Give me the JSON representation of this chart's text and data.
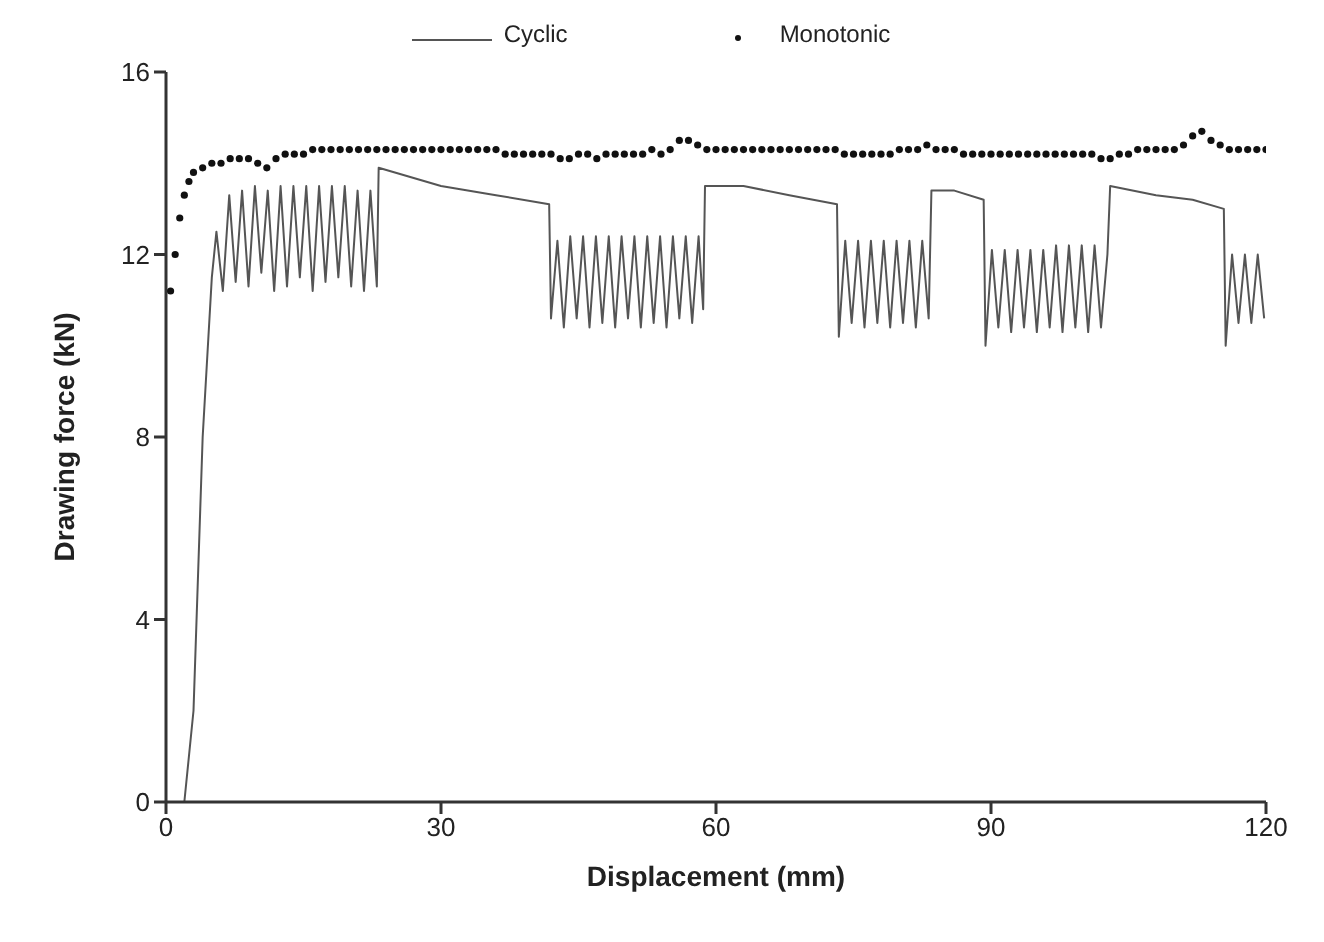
{
  "chart_data": {
    "type": "line",
    "xlabel": "Displacement (mm)",
    "ylabel": "Drawing force (kN)",
    "xlim": [
      0,
      120
    ],
    "xticks": [
      0,
      30,
      60,
      90,
      120
    ],
    "ylim": [
      0,
      16
    ],
    "yticks": [
      0,
      4,
      8,
      12,
      16
    ],
    "grid": false,
    "legend": "top",
    "series": [
      {
        "name": "Cyclic",
        "color": "#555555",
        "marker": "none",
        "line_style": "solid",
        "x": [
          0,
          2,
          3,
          4,
          5,
          5.5,
          6.2,
          6.9,
          7.6,
          8.3,
          9.0,
          9.7,
          10.4,
          11.1,
          11.8,
          12.5,
          13.2,
          13.9,
          14.6,
          15.3,
          16.0,
          16.7,
          17.4,
          18.1,
          18.8,
          19.5,
          20.2,
          20.9,
          21.6,
          22.3,
          23.0,
          23.2,
          30,
          36,
          41.8,
          42,
          42.7,
          43.4,
          44.1,
          44.8,
          45.5,
          46.2,
          46.9,
          47.6,
          48.3,
          49.0,
          49.7,
          50.4,
          51.1,
          51.8,
          52.5,
          53.2,
          53.9,
          54.6,
          55.3,
          56.0,
          56.7,
          57.4,
          58.1,
          58.6,
          58.8,
          63,
          68,
          73.2,
          73.4,
          74.1,
          74.8,
          75.5,
          76.2,
          76.9,
          77.6,
          78.3,
          79.0,
          79.7,
          80.4,
          81.1,
          81.8,
          82.5,
          83.2,
          83.5,
          86,
          89.2,
          89.4,
          90.1,
          90.8,
          91.5,
          92.2,
          92.9,
          93.6,
          94.3,
          95.0,
          95.7,
          96.4,
          97.1,
          97.8,
          98.5,
          99.2,
          99.9,
          100.6,
          101.3,
          102.0,
          102.7,
          103.0,
          108,
          112,
          115.4,
          115.6,
          116.3,
          117.0,
          117.7,
          118.4,
          119.1,
          119.8
        ],
        "values": [
          0,
          0,
          2,
          8,
          11.5,
          12.5,
          11.2,
          13.3,
          11.4,
          13.4,
          11.3,
          13.5,
          11.6,
          13.4,
          11.2,
          13.5,
          11.3,
          13.5,
          11.5,
          13.5,
          11.2,
          13.5,
          11.4,
          13.5,
          11.5,
          13.5,
          11.3,
          13.4,
          11.2,
          13.4,
          11.3,
          13.9,
          13.5,
          13.3,
          13.1,
          10.6,
          12.3,
          10.4,
          12.4,
          10.6,
          12.4,
          10.4,
          12.4,
          10.5,
          12.4,
          10.4,
          12.4,
          10.6,
          12.4,
          10.4,
          12.4,
          10.5,
          12.4,
          10.4,
          12.4,
          10.6,
          12.4,
          10.5,
          12.4,
          10.8,
          13.5,
          13.5,
          13.3,
          13.1,
          10.2,
          12.3,
          10.5,
          12.3,
          10.4,
          12.3,
          10.5,
          12.3,
          10.4,
          12.3,
          10.5,
          12.3,
          10.4,
          12.3,
          10.6,
          13.4,
          13.4,
          13.2,
          10.0,
          12.1,
          10.4,
          12.1,
          10.3,
          12.1,
          10.4,
          12.1,
          10.3,
          12.1,
          10.4,
          12.2,
          10.3,
          12.2,
          10.4,
          12.2,
          10.3,
          12.2,
          10.4,
          12.0,
          13.5,
          13.3,
          13.2,
          13.0,
          10.0,
          12.0,
          10.5,
          12.0,
          10.5,
          12.0,
          10.6
        ]
      },
      {
        "name": "Monotonic",
        "type": "scatter",
        "color": "#111111",
        "marker": "circle",
        "x": [
          0.5,
          1,
          1.5,
          2,
          2.5,
          3,
          4,
          5,
          6,
          7,
          8,
          9,
          10,
          11,
          12,
          13,
          14,
          15,
          16,
          17,
          18,
          19,
          20,
          21,
          22,
          23,
          24,
          25,
          26,
          27,
          28,
          29,
          30,
          31,
          32,
          33,
          34,
          35,
          36,
          37,
          38,
          39,
          40,
          41,
          42,
          43,
          44,
          45,
          46,
          47,
          48,
          49,
          50,
          51,
          52,
          53,
          54,
          55,
          56,
          57,
          58,
          59,
          60,
          61,
          62,
          63,
          64,
          65,
          66,
          67,
          68,
          69,
          70,
          71,
          72,
          73,
          74,
          75,
          76,
          77,
          78,
          79,
          80,
          81,
          82,
          83,
          84,
          85,
          86,
          87,
          88,
          89,
          90,
          91,
          92,
          93,
          94,
          95,
          96,
          97,
          98,
          99,
          100,
          101,
          102,
          103,
          104,
          105,
          106,
          107,
          108,
          109,
          110,
          111,
          112,
          113,
          114,
          115,
          116,
          117,
          118,
          119,
          120
        ],
        "values": [
          11.2,
          12,
          12.8,
          13.3,
          13.6,
          13.8,
          13.9,
          14.0,
          14.0,
          14.1,
          14.1,
          14.1,
          14.0,
          13.9,
          14.1,
          14.2,
          14.2,
          14.2,
          14.3,
          14.3,
          14.3,
          14.3,
          14.3,
          14.3,
          14.3,
          14.3,
          14.3,
          14.3,
          14.3,
          14.3,
          14.3,
          14.3,
          14.3,
          14.3,
          14.3,
          14.3,
          14.3,
          14.3,
          14.3,
          14.2,
          14.2,
          14.2,
          14.2,
          14.2,
          14.2,
          14.1,
          14.1,
          14.2,
          14.2,
          14.1,
          14.2,
          14.2,
          14.2,
          14.2,
          14.2,
          14.3,
          14.2,
          14.3,
          14.5,
          14.5,
          14.4,
          14.3,
          14.3,
          14.3,
          14.3,
          14.3,
          14.3,
          14.3,
          14.3,
          14.3,
          14.3,
          14.3,
          14.3,
          14.3,
          14.3,
          14.3,
          14.2,
          14.2,
          14.2,
          14.2,
          14.2,
          14.2,
          14.3,
          14.3,
          14.3,
          14.4,
          14.3,
          14.3,
          14.3,
          14.2,
          14.2,
          14.2,
          14.2,
          14.2,
          14.2,
          14.2,
          14.2,
          14.2,
          14.2,
          14.2,
          14.2,
          14.2,
          14.2,
          14.2,
          14.1,
          14.1,
          14.2,
          14.2,
          14.3,
          14.3,
          14.3,
          14.3,
          14.3,
          14.4,
          14.6,
          14.7,
          14.5,
          14.4,
          14.3,
          14.3,
          14.3,
          14.3,
          14.3
        ]
      }
    ]
  }
}
